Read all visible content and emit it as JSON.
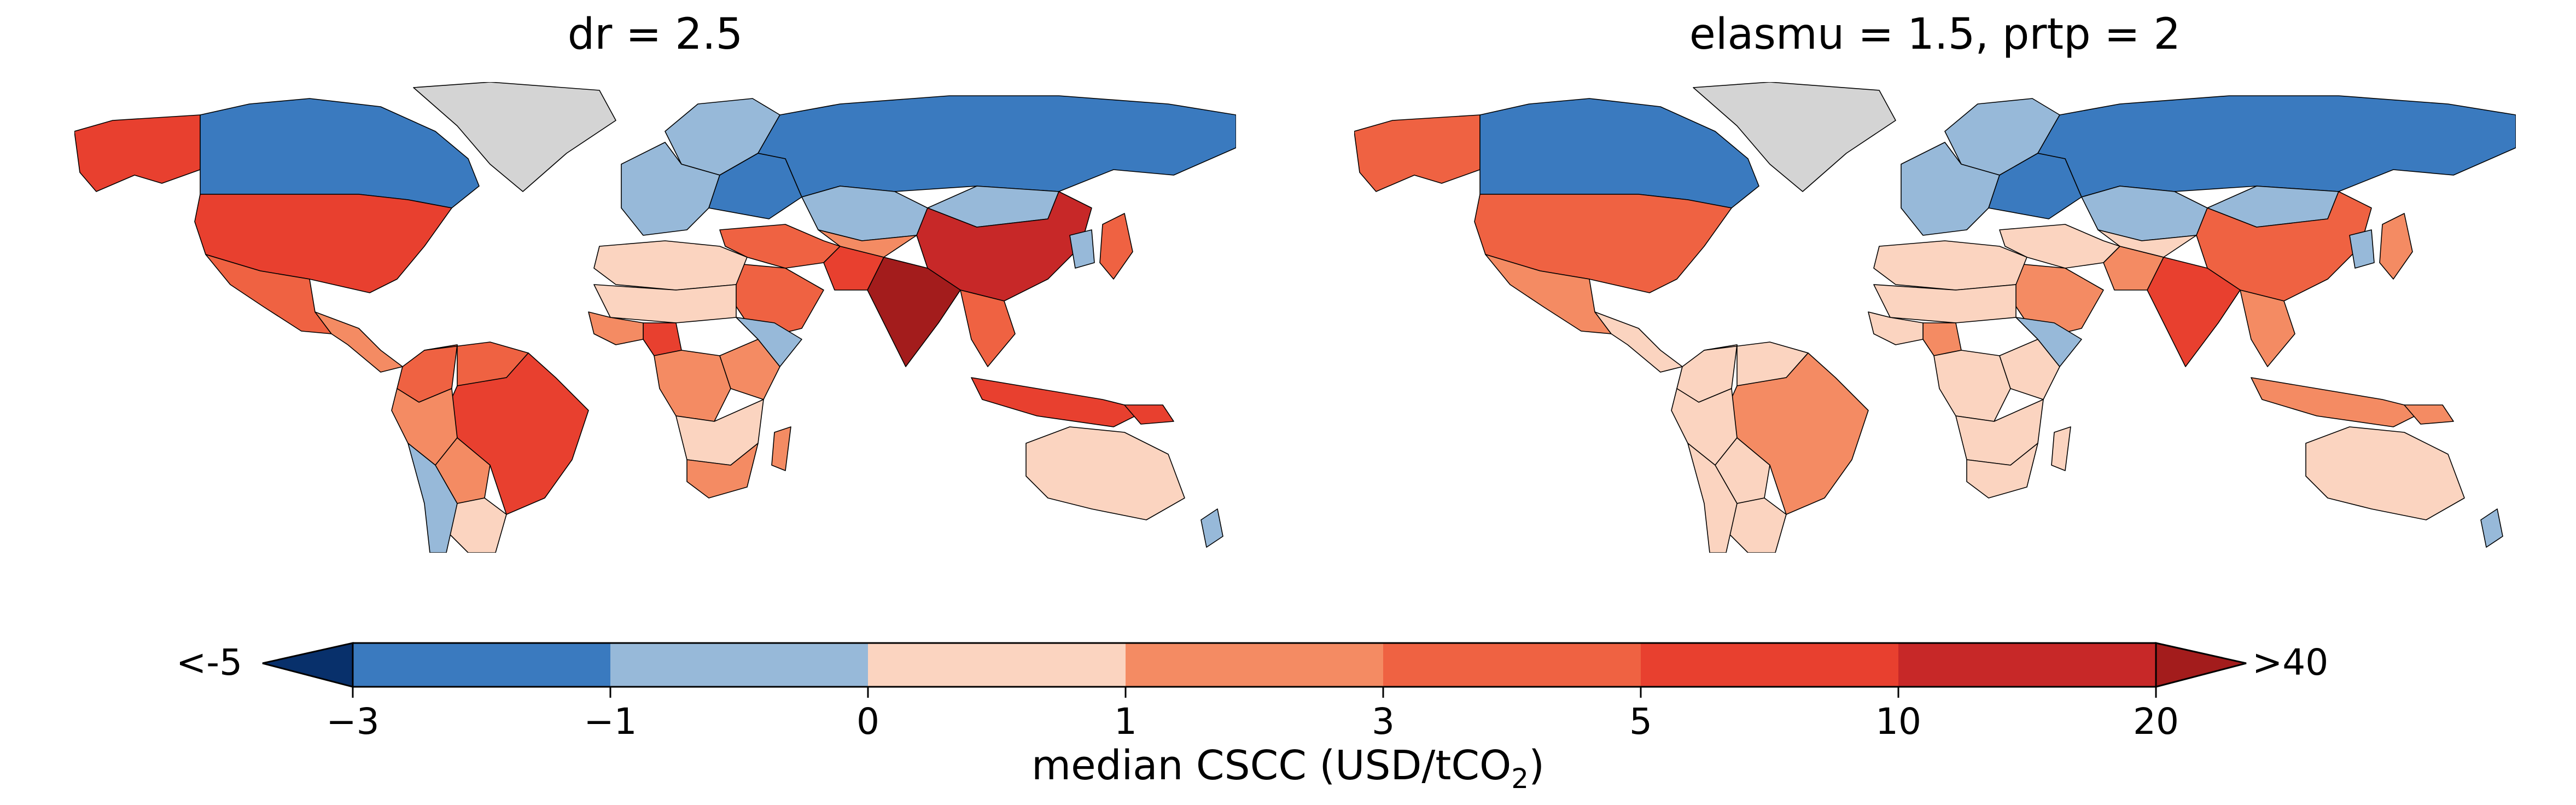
{
  "panels": [
    {
      "title": "dr = 2.5",
      "regions": {
        "alaska": 6,
        "canada": 1,
        "greenland": 0,
        "usa": 6,
        "mexico": 5,
        "central_america": 4,
        "colombia": 5,
        "venezuela": 5,
        "brazil": 6,
        "peru": 4,
        "bolivia": 4,
        "argentina": 3,
        "chile": 2,
        "nordics": 2,
        "western_europe": 2,
        "eastern_europe": 1,
        "russia": 1,
        "kazakhstan": 2,
        "mongolia": 2,
        "china": 7,
        "japan": 5,
        "korea": 2,
        "india": 8,
        "pakistan": 6,
        "middle_east": 5,
        "arabia": 5,
        "central_asia": 4,
        "southeast_asia": 5,
        "indonesia": 6,
        "north_africa": 3,
        "sahel": 3,
        "nigeria": 6,
        "west_africa": 4,
        "central_africa": 4,
        "east_africa": 4,
        "horn_of_africa": 2,
        "southern_africa": 3,
        "south_africa": 4,
        "madagascar": 4,
        "australia": 3,
        "new_zealand": 2,
        "png": 6
      }
    },
    {
      "title": "elasmu = 1.5, prtp = 2",
      "regions": {
        "alaska": 5,
        "canada": 1,
        "greenland": 0,
        "usa": 5,
        "mexico": 4,
        "central_america": 3,
        "colombia": 3,
        "venezuela": 3,
        "brazil": 4,
        "peru": 3,
        "bolivia": 3,
        "argentina": 3,
        "chile": 3,
        "nordics": 2,
        "western_europe": 2,
        "eastern_europe": 1,
        "russia": 1,
        "kazakhstan": 2,
        "mongolia": 2,
        "china": 5,
        "japan": 4,
        "korea": 2,
        "india": 6,
        "pakistan": 4,
        "middle_east": 3,
        "arabia": 4,
        "central_asia": 3,
        "southeast_asia": 4,
        "indonesia": 4,
        "north_africa": 3,
        "sahel": 3,
        "nigeria": 4,
        "west_africa": 3,
        "central_africa": 3,
        "east_africa": 3,
        "horn_of_africa": 2,
        "southern_africa": 3,
        "south_africa": 3,
        "madagascar": 3,
        "australia": 3,
        "new_zealand": 2,
        "png": 4
      }
    }
  ],
  "legend": {
    "title_main": "median CSCC (USD/tCO",
    "title_sub": "2",
    "title_close": ")",
    "under_label": "<-5",
    "over_label": ">40",
    "ticks": [
      "−3",
      "−1",
      "0",
      "1",
      "3",
      "5",
      "10",
      "20"
    ],
    "bin_colors": [
      "#08306b",
      "#3a7abf",
      "#97b9d9",
      "#fbd4c0",
      "#f48b63",
      "#ef6242",
      "#e8402f",
      "#c72828",
      "#a31c1c"
    ],
    "nodata_color": "#d4d4d4"
  }
}
